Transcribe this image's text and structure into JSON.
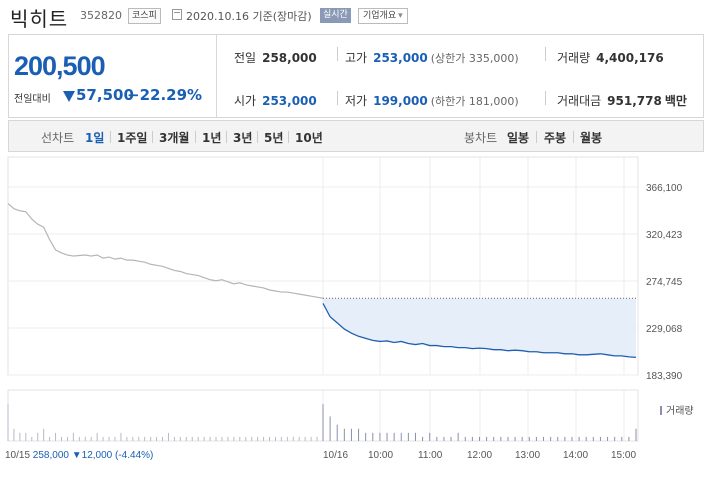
{
  "header": {
    "stock_name": "빅히트",
    "stock_code": "352820",
    "market": "코스피",
    "date_text": "2020.10.16 기준(장마감)",
    "realtime_label": "실시간",
    "company_overview_label": "기업개요",
    "company_overview_arrow": "▾"
  },
  "summary": {
    "current_price": "200,500",
    "change_label": "전일대비",
    "change_direction": "down",
    "change_value": "57,500",
    "change_pct": "−22.29%",
    "prev_close_label": "전일",
    "prev_close": "258,000",
    "high_label": "고가",
    "high": "253,000",
    "upper_limit": "(상한가 335,000)",
    "volume_label": "거래량",
    "volume": "4,400,176",
    "open_label": "시가",
    "open": "253,000",
    "low_label": "저가",
    "low": "199,000",
    "lower_limit": "(하한가 181,000)",
    "amount_label": "거래대금",
    "amount": "951,778",
    "amount_unit": "백만"
  },
  "periods": {
    "line_chart_label": "선차트",
    "items": [
      "1일",
      "1주일",
      "3개월",
      "1년",
      "3년",
      "5년",
      "10년"
    ],
    "active": "1일",
    "candle_label": "봉차트",
    "candle_items": [
      "일봉",
      "주봉",
      "월봉"
    ]
  },
  "colors": {
    "accent": "#1a5fb4",
    "line_prev": "#b5b5b5",
    "line_today": "#1f5fb0",
    "fill_today": "#e6eef9",
    "volume_bar": "#8a8fb0"
  },
  "chart_data": {
    "type": "line",
    "y_ticks": [
      "366,100",
      "320,423",
      "274,745",
      "229,068",
      "183,390"
    ],
    "y_range": [
      183390,
      366100
    ],
    "prev_close": 258000,
    "x_labels": [
      "10/15",
      "10/16",
      "10:00",
      "11:00",
      "12:00",
      "13:00",
      "14:00",
      "15:00"
    ],
    "volume_label": "거래량",
    "prev_day_info": {
      "date": "10/15",
      "price": "258,000",
      "change": "▼12,000",
      "pct": "(-4.44%)"
    },
    "series": [
      {
        "day": "10/15",
        "values": [
          350000,
          345000,
          343000,
          342000,
          335000,
          330000,
          327000,
          315000,
          305000,
          302000,
          300000,
          299000,
          299500,
          300000,
          299000,
          300000,
          297000,
          298000,
          296000,
          297000,
          295000,
          295000,
          294000,
          293000,
          291000,
          290000,
          289000,
          287000,
          285000,
          284000,
          282000,
          281000,
          280000,
          278000,
          276000,
          275000,
          276000,
          274000,
          272000,
          273000,
          271000,
          270000,
          269000,
          268000,
          266000,
          265000,
          264000,
          264000,
          263000,
          262000,
          261000,
          260000,
          259000,
          258000
        ]
      },
      {
        "day": "10/16",
        "values": [
          253000,
          240000,
          234000,
          228000,
          224000,
          221000,
          219000,
          217000,
          216000,
          216500,
          215000,
          216000,
          214000,
          213000,
          214000,
          212000,
          212000,
          211000,
          211000,
          210000,
          210000,
          209000,
          209500,
          209000,
          208000,
          208000,
          207000,
          207500,
          207000,
          206000,
          206000,
          205000,
          205000,
          205000,
          204000,
          204000,
          203000,
          203000,
          203500,
          204000,
          203000,
          202000,
          202000,
          201000,
          200500
        ]
      }
    ],
    "volume_series": [
      {
        "day": "10/15",
        "values": [
          9,
          3,
          2,
          2,
          1,
          2,
          3,
          1,
          2,
          1,
          1,
          2,
          1,
          1,
          1,
          2,
          1,
          1,
          1,
          2,
          1,
          1,
          1,
          1,
          1,
          1,
          1,
          2,
          1,
          1,
          1,
          1,
          1,
          1,
          1,
          1,
          1,
          1,
          1,
          1,
          1,
          1,
          1,
          1,
          1,
          1,
          1,
          1,
          1,
          1,
          1,
          1,
          1,
          3
        ]
      },
      {
        "day": "10/16",
        "values": [
          9,
          6,
          4,
          3,
          3,
          3,
          2,
          2,
          2,
          2,
          2,
          2,
          2,
          2,
          1,
          2,
          1,
          1,
          1,
          2,
          1,
          1,
          1,
          1,
          1,
          1,
          1,
          1,
          1,
          1,
          1,
          1,
          1,
          1,
          1,
          1,
          1,
          1,
          1,
          1,
          1,
          1,
          1,
          1,
          3
        ]
      }
    ]
  }
}
